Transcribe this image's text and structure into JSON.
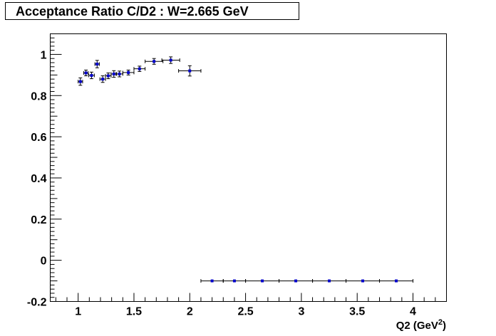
{
  "chart_data": {
    "type": "scatter",
    "title": "Acceptance Ratio C/D2 : W=2.665 GeV",
    "xlabel": "Q2 (GeV",
    "xlabel_sup": "2",
    "xlabel_tail": ")",
    "ylabel": "",
    "xlim": [
      0.75,
      4.3
    ],
    "ylim": [
      -0.2,
      1.1
    ],
    "x_ticks": [
      1,
      1.5,
      2,
      2.5,
      3,
      3.5,
      4
    ],
    "x_tick_labels": [
      "1",
      "1.5",
      "2",
      "2.5",
      "3",
      "3.5",
      "4"
    ],
    "y_ticks": [
      -0.2,
      0,
      0.2,
      0.4,
      0.6,
      0.8,
      1
    ],
    "y_tick_labels": [
      "-0.2",
      "0",
      "0.2",
      "0.4",
      "0.6",
      "0.8",
      "1"
    ],
    "grid": false,
    "marker_color": "#0000cc",
    "points": [
      {
        "x": 1.02,
        "y": 0.868,
        "xerr": 0.02,
        "yerr": 0.018
      },
      {
        "x": 1.07,
        "y": 0.91,
        "xerr": 0.02,
        "yerr": 0.014
      },
      {
        "x": 1.12,
        "y": 0.898,
        "xerr": 0.025,
        "yerr": 0.016
      },
      {
        "x": 1.17,
        "y": 0.953,
        "xerr": 0.02,
        "yerr": 0.018
      },
      {
        "x": 1.22,
        "y": 0.88,
        "xerr": 0.025,
        "yerr": 0.016
      },
      {
        "x": 1.27,
        "y": 0.896,
        "xerr": 0.025,
        "yerr": 0.014
      },
      {
        "x": 1.32,
        "y": 0.905,
        "xerr": 0.025,
        "yerr": 0.016
      },
      {
        "x": 1.37,
        "y": 0.905,
        "xerr": 0.03,
        "yerr": 0.014
      },
      {
        "x": 1.45,
        "y": 0.912,
        "xerr": 0.05,
        "yerr": 0.012
      },
      {
        "x": 1.55,
        "y": 0.93,
        "xerr": 0.05,
        "yerr": 0.013
      },
      {
        "x": 1.68,
        "y": 0.966,
        "xerr": 0.08,
        "yerr": 0.014
      },
      {
        "x": 1.83,
        "y": 0.972,
        "xerr": 0.08,
        "yerr": 0.016
      },
      {
        "x": 2.0,
        "y": 0.92,
        "xerr": 0.1,
        "yerr": 0.025
      },
      {
        "x": 2.2,
        "y": -0.1,
        "xerr": 0.1,
        "yerr": 0
      },
      {
        "x": 2.4,
        "y": -0.1,
        "xerr": 0.1,
        "yerr": 0
      },
      {
        "x": 2.65,
        "y": -0.1,
        "xerr": 0.15,
        "yerr": 0
      },
      {
        "x": 2.95,
        "y": -0.1,
        "xerr": 0.15,
        "yerr": 0
      },
      {
        "x": 3.25,
        "y": -0.1,
        "xerr": 0.15,
        "yerr": 0
      },
      {
        "x": 3.55,
        "y": -0.1,
        "xerr": 0.15,
        "yerr": 0
      },
      {
        "x": 3.85,
        "y": -0.1,
        "xerr": 0.15,
        "yerr": 0
      }
    ]
  }
}
